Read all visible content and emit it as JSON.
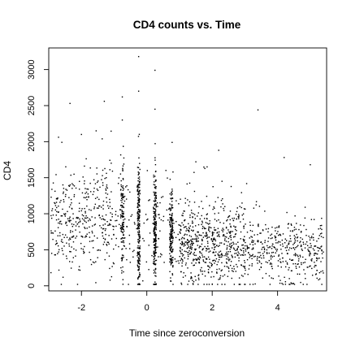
{
  "chart_data": {
    "type": "scatter",
    "title": "CD4 counts vs. Time",
    "xlabel": "Time since zeroconversion",
    "ylabel": "CD4",
    "xlim": [
      -3.0,
      5.5
    ],
    "ylim": [
      -70,
      3300
    ],
    "x_ticks": [
      -2,
      0,
      2,
      4
    ],
    "y_ticks": [
      0,
      500,
      1000,
      1500,
      2000,
      2500,
      3000
    ],
    "x_tick_labels": [
      "-2",
      "0",
      "2",
      "4"
    ],
    "y_tick_labels": [
      "0",
      "500",
      "1000",
      "1500",
      "2000",
      "2500",
      "3000"
    ],
    "grid": false,
    "point_count_approx": 2376,
    "series": [
      {
        "marker": "point",
        "color": "#000000",
        "clusters": [
          {
            "x_center": -0.75,
            "x_spread": 0.09,
            "y_center": 880,
            "y_sd": 360,
            "n": 120
          },
          {
            "x_center": -0.25,
            "x_spread": 0.07,
            "y_center": 880,
            "y_sd": 430,
            "n": 200
          },
          {
            "x_center": 0.25,
            "x_spread": 0.07,
            "y_center": 760,
            "y_sd": 360,
            "n": 220
          },
          {
            "x_center": 0.75,
            "x_spread": 0.09,
            "y_center": 660,
            "y_sd": 300,
            "n": 170
          }
        ],
        "background": [
          {
            "x_range": [
              -2.95,
              -1.0
            ],
            "y_center": 930,
            "y_sd": 340,
            "n": 380
          },
          {
            "x_range": [
              -1.0,
              1.0
            ],
            "y_center": 800,
            "y_sd": 340,
            "n": 120
          },
          {
            "x_range": [
              1.0,
              3.0
            ],
            "y_center": 560,
            "y_sd": 280,
            "n": 620
          },
          {
            "x_range": [
              3.0,
              5.4
            ],
            "y_center": 480,
            "y_sd": 250,
            "n": 420
          }
        ],
        "outliers": [
          {
            "x": -0.25,
            "y": 3180
          },
          {
            "x": 0.25,
            "y": 2990
          },
          {
            "x": -0.75,
            "y": 2620
          },
          {
            "x": -1.3,
            "y": 2560
          },
          {
            "x": -2.35,
            "y": 2530
          },
          {
            "x": -0.25,
            "y": 2700
          },
          {
            "x": -0.75,
            "y": 2300
          },
          {
            "x": 0.25,
            "y": 2450
          },
          {
            "x": 3.4,
            "y": 2440
          },
          {
            "x": 2.2,
            "y": 1880
          },
          {
            "x": 1.5,
            "y": 1720
          },
          {
            "x": 4.2,
            "y": 1780
          },
          {
            "x": 5.0,
            "y": 1680
          },
          {
            "x": -2.0,
            "y": 2100
          },
          {
            "x": -1.55,
            "y": 2150
          },
          {
            "x": 2.3,
            "y": 1450
          }
        ]
      }
    ]
  }
}
